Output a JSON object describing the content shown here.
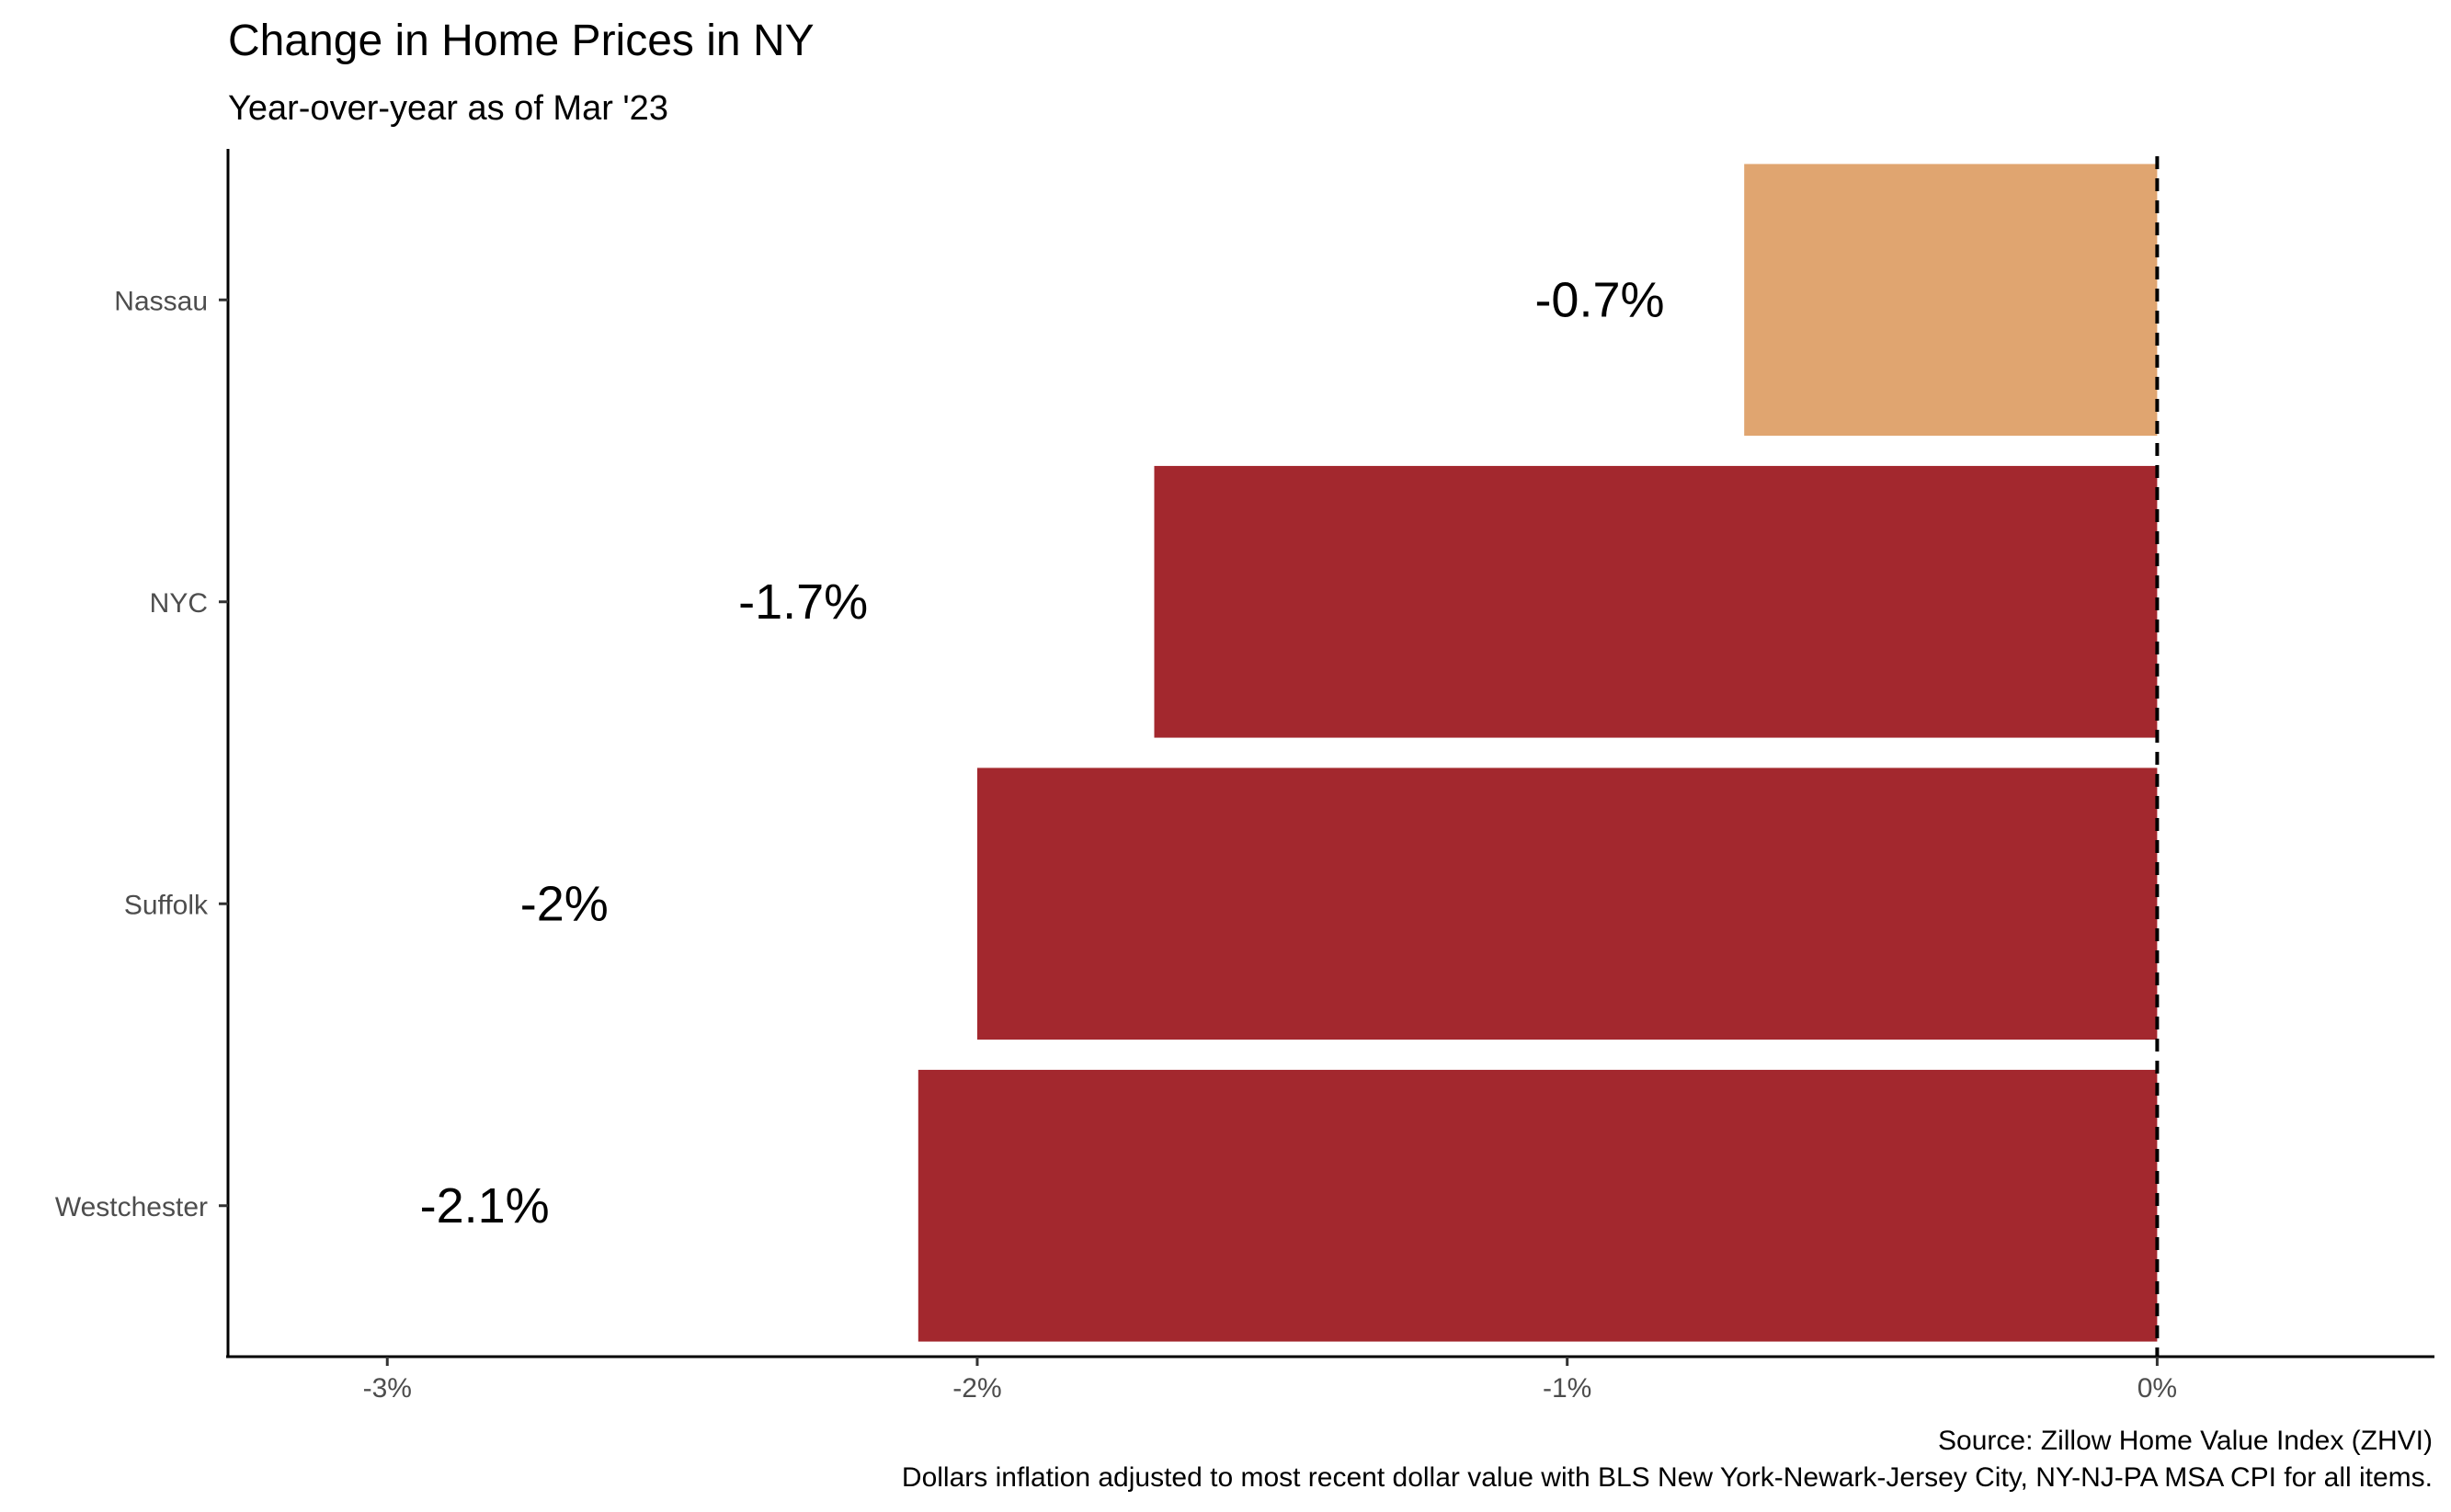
{
  "chart_data": {
    "type": "bar",
    "orientation": "horizontal",
    "title": "Change in Home Prices in NY",
    "subtitle": "Year-over-year as of Mar '23",
    "categories": [
      "Nassau",
      "NYC",
      "Suffolk",
      "Westchester"
    ],
    "values": [
      -0.7,
      -1.7,
      -2.0,
      -2.1
    ],
    "value_labels": [
      "-0.7%",
      "-1.7%",
      "-2%",
      "-2.1%"
    ],
    "bar_colors": [
      "#e0a570",
      "#a3282e",
      "#a3282e",
      "#a3282e"
    ],
    "xlim": [
      -3.27,
      0.47
    ],
    "x_ticks": [
      -3,
      -2,
      -1,
      0
    ],
    "x_tick_labels": [
      "-3%",
      "-2%",
      "-1%",
      "0%"
    ],
    "reference_line": {
      "x": 0,
      "style": "dashed"
    },
    "xlabel": "",
    "ylabel": "",
    "grid": false,
    "legend": "none",
    "caption": [
      "Source: Zillow Home Value Index (ZHVI)",
      "Dollars inflation adjusted to most recent dollar value with BLS New York-Newark-Jersey City, NY-NJ-PA MSA CPI for all items."
    ]
  }
}
